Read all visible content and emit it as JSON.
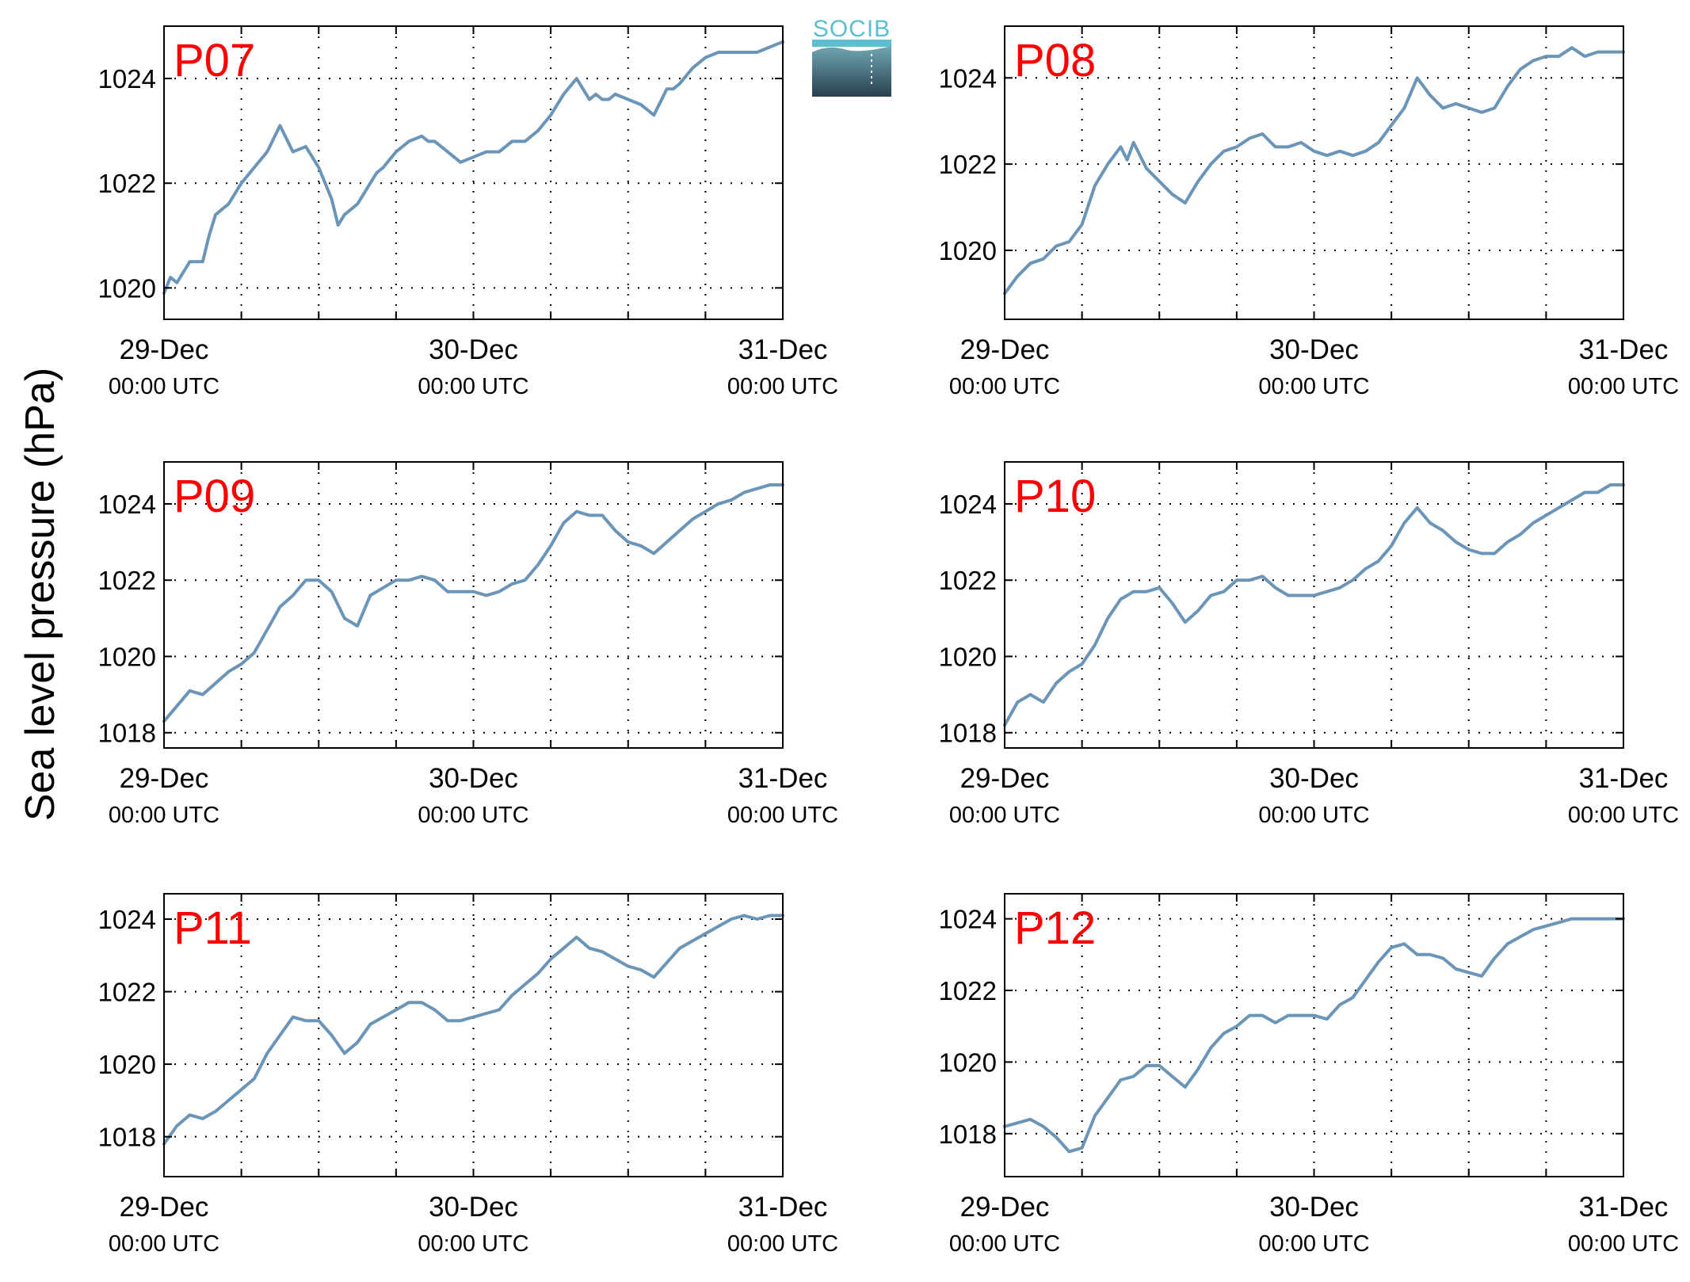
{
  "figure": {
    "ylabel": "Sea level pressure (hPa)",
    "logo_text": "SOCIB",
    "colors": {
      "line": "#6a95b8",
      "panel_label": "#ff0000",
      "axis": "#000000",
      "logo_top": "#5bbfd0",
      "logo_bottom": "#2a3f4d"
    }
  },
  "chart_data": [
    {
      "type": "line",
      "title": "P07",
      "x_ticks": [
        {
          "day": "29-Dec",
          "time": "00:00 UTC"
        },
        {
          "day": "30-Dec",
          "time": "00:00 UTC"
        },
        {
          "day": "31-Dec",
          "time": "00:00 UTC"
        }
      ],
      "x_range_hours": [
        0,
        48
      ],
      "ylim": [
        1019.4,
        1025.0
      ],
      "yticks": [
        1020,
        1022,
        1024
      ],
      "grid": true,
      "series": [
        {
          "color": "#6a95b8",
          "x": [
            0,
            0.5,
            1,
            1.5,
            2,
            3,
            3.5,
            4,
            4.5,
            5,
            6,
            7,
            8,
            9,
            10,
            11,
            12,
            12.5,
            13,
            13.5,
            14,
            15,
            15.5,
            16,
            16.5,
            17,
            18,
            19,
            20,
            20.5,
            21,
            22,
            23,
            24,
            25,
            26,
            27,
            28,
            29,
            30,
            31,
            32,
            33,
            33.5,
            34,
            34.5,
            35,
            36,
            37,
            38,
            39,
            39.5,
            40,
            41,
            42,
            43,
            44,
            45,
            46,
            47,
            48
          ],
          "y": [
            1019.9,
            1020.2,
            1020.1,
            1020.3,
            1020.5,
            1020.5,
            1021.0,
            1021.4,
            1021.5,
            1021.6,
            1022.0,
            1022.3,
            1022.6,
            1023.1,
            1022.6,
            1022.7,
            1022.3,
            1022.0,
            1021.7,
            1021.2,
            1021.4,
            1021.6,
            1021.8,
            1022.0,
            1022.2,
            1022.3,
            1022.6,
            1022.8,
            1022.9,
            1022.8,
            1022.8,
            1022.6,
            1022.4,
            1022.5,
            1022.6,
            1022.6,
            1022.8,
            1022.8,
            1023.0,
            1023.3,
            1023.7,
            1024.0,
            1023.6,
            1023.7,
            1023.6,
            1023.6,
            1023.7,
            1023.6,
            1023.5,
            1023.3,
            1023.8,
            1023.8,
            1023.9,
            1024.2,
            1024.4,
            1024.5,
            1024.5,
            1024.5,
            1024.5,
            1024.6,
            1024.7
          ]
        }
      ]
    },
    {
      "type": "line",
      "title": "P08",
      "x_ticks": [
        {
          "day": "29-Dec",
          "time": "00:00 UTC"
        },
        {
          "day": "30-Dec",
          "time": "00:00 UTC"
        },
        {
          "day": "31-Dec",
          "time": "00:00 UTC"
        }
      ],
      "x_range_hours": [
        0,
        48
      ],
      "ylim": [
        1018.4,
        1025.2
      ],
      "yticks": [
        1020,
        1022,
        1024
      ],
      "grid": true,
      "series": [
        {
          "color": "#6a95b8",
          "x": [
            0,
            1,
            2,
            3,
            4,
            5,
            6,
            7,
            8,
            9,
            9.5,
            10,
            11,
            12,
            13,
            14,
            15,
            16,
            17,
            18,
            19,
            20,
            21,
            22,
            23,
            24,
            25,
            26,
            27,
            28,
            29,
            30,
            31,
            32,
            33,
            34,
            35,
            36,
            37,
            38,
            39,
            40,
            41,
            42,
            43,
            44,
            45,
            46,
            47,
            48
          ],
          "y": [
            1019.0,
            1019.4,
            1019.7,
            1019.8,
            1020.1,
            1020.2,
            1020.6,
            1021.5,
            1022.0,
            1022.4,
            1022.1,
            1022.5,
            1021.9,
            1021.6,
            1021.3,
            1021.1,
            1021.6,
            1022.0,
            1022.3,
            1022.4,
            1022.6,
            1022.7,
            1022.4,
            1022.4,
            1022.5,
            1022.3,
            1022.2,
            1022.3,
            1022.2,
            1022.3,
            1022.5,
            1022.9,
            1023.3,
            1024.0,
            1023.6,
            1023.3,
            1023.4,
            1023.3,
            1023.2,
            1023.3,
            1023.8,
            1024.2,
            1024.4,
            1024.5,
            1024.5,
            1024.7,
            1024.5,
            1024.6,
            1024.6,
            1024.6
          ]
        }
      ]
    },
    {
      "type": "line",
      "title": "P09",
      "x_ticks": [
        {
          "day": "29-Dec",
          "time": "00:00 UTC"
        },
        {
          "day": "30-Dec",
          "time": "00:00 UTC"
        },
        {
          "day": "31-Dec",
          "time": "00:00 UTC"
        }
      ],
      "x_range_hours": [
        0,
        48
      ],
      "ylim": [
        1017.6,
        1025.1
      ],
      "yticks": [
        1018,
        1020,
        1022,
        1024
      ],
      "grid": true,
      "series": [
        {
          "color": "#6a95b8",
          "x": [
            0,
            1,
            2,
            3,
            4,
            5,
            6,
            7,
            8,
            9,
            10,
            11,
            12,
            13,
            14,
            15,
            16,
            17,
            18,
            19,
            20,
            21,
            22,
            23,
            24,
            25,
            26,
            27,
            28,
            29,
            30,
            31,
            32,
            33,
            34,
            35,
            36,
            37,
            38,
            39,
            40,
            41,
            42,
            43,
            44,
            45,
            46,
            47,
            48
          ],
          "y": [
            1018.3,
            1018.7,
            1019.1,
            1019.0,
            1019.3,
            1019.6,
            1019.8,
            1020.1,
            1020.7,
            1021.3,
            1021.6,
            1022.0,
            1022.0,
            1021.7,
            1021.0,
            1020.8,
            1021.6,
            1021.8,
            1022.0,
            1022.0,
            1022.1,
            1022.0,
            1021.7,
            1021.7,
            1021.7,
            1021.6,
            1021.7,
            1021.9,
            1022.0,
            1022.4,
            1022.9,
            1023.5,
            1023.8,
            1023.7,
            1023.7,
            1023.3,
            1023.0,
            1022.9,
            1022.7,
            1023.0,
            1023.3,
            1023.6,
            1023.8,
            1024.0,
            1024.1,
            1024.3,
            1024.4,
            1024.5,
            1024.5
          ]
        }
      ]
    },
    {
      "type": "line",
      "title": "P10",
      "x_ticks": [
        {
          "day": "29-Dec",
          "time": "00:00 UTC"
        },
        {
          "day": "30-Dec",
          "time": "00:00 UTC"
        },
        {
          "day": "31-Dec",
          "time": "00:00 UTC"
        }
      ],
      "x_range_hours": [
        0,
        48
      ],
      "ylim": [
        1017.6,
        1025.1
      ],
      "yticks": [
        1018,
        1020,
        1022,
        1024
      ],
      "grid": true,
      "series": [
        {
          "color": "#6a95b8",
          "x": [
            0,
            1,
            2,
            3,
            4,
            5,
            6,
            7,
            8,
            9,
            10,
            11,
            12,
            13,
            14,
            15,
            16,
            17,
            18,
            19,
            20,
            21,
            22,
            23,
            24,
            25,
            26,
            27,
            28,
            29,
            30,
            31,
            32,
            33,
            34,
            35,
            36,
            37,
            38,
            39,
            40,
            41,
            42,
            43,
            44,
            45,
            46,
            47,
            48
          ],
          "y": [
            1018.2,
            1018.8,
            1019.0,
            1018.8,
            1019.3,
            1019.6,
            1019.8,
            1020.3,
            1021.0,
            1021.5,
            1021.7,
            1021.7,
            1021.8,
            1021.4,
            1020.9,
            1021.2,
            1021.6,
            1021.7,
            1022.0,
            1022.0,
            1022.1,
            1021.8,
            1021.6,
            1021.6,
            1021.6,
            1021.7,
            1021.8,
            1022.0,
            1022.3,
            1022.5,
            1022.9,
            1023.5,
            1023.9,
            1023.5,
            1023.3,
            1023.0,
            1022.8,
            1022.7,
            1022.7,
            1023.0,
            1023.2,
            1023.5,
            1023.7,
            1023.9,
            1024.1,
            1024.3,
            1024.3,
            1024.5,
            1024.5
          ]
        }
      ]
    },
    {
      "type": "line",
      "title": "P11",
      "x_ticks": [
        {
          "day": "29-Dec",
          "time": "00:00 UTC"
        },
        {
          "day": "30-Dec",
          "time": "00:00 UTC"
        },
        {
          "day": "31-Dec",
          "time": "00:00 UTC"
        }
      ],
      "x_range_hours": [
        0,
        48
      ],
      "ylim": [
        1016.9,
        1024.7
      ],
      "yticks": [
        1018,
        1020,
        1022,
        1024
      ],
      "grid": true,
      "series": [
        {
          "color": "#6a95b8",
          "x": [
            0,
            1,
            2,
            3,
            4,
            5,
            6,
            7,
            8,
            9,
            10,
            11,
            12,
            13,
            14,
            15,
            16,
            17,
            18,
            19,
            20,
            21,
            22,
            23,
            24,
            25,
            26,
            27,
            28,
            29,
            30,
            31,
            32,
            33,
            34,
            35,
            36,
            37,
            38,
            39,
            40,
            41,
            42,
            43,
            44,
            45,
            46,
            47,
            48
          ],
          "y": [
            1017.8,
            1018.3,
            1018.6,
            1018.5,
            1018.7,
            1019.0,
            1019.3,
            1019.6,
            1020.3,
            1020.8,
            1021.3,
            1021.2,
            1021.2,
            1020.8,
            1020.3,
            1020.6,
            1021.1,
            1021.3,
            1021.5,
            1021.7,
            1021.7,
            1021.5,
            1021.2,
            1021.2,
            1021.3,
            1021.4,
            1021.5,
            1021.9,
            1022.2,
            1022.5,
            1022.9,
            1023.2,
            1023.5,
            1023.2,
            1023.1,
            1022.9,
            1022.7,
            1022.6,
            1022.4,
            1022.8,
            1023.2,
            1023.4,
            1023.6,
            1023.8,
            1024.0,
            1024.1,
            1024.0,
            1024.1,
            1024.1
          ]
        }
      ]
    },
    {
      "type": "line",
      "title": "P12",
      "x_ticks": [
        {
          "day": "29-Dec",
          "time": "00:00 UTC"
        },
        {
          "day": "30-Dec",
          "time": "00:00 UTC"
        },
        {
          "day": "31-Dec",
          "time": "00:00 UTC"
        }
      ],
      "x_range_hours": [
        0,
        48
      ],
      "ylim": [
        1016.8,
        1024.7
      ],
      "yticks": [
        1018,
        1020,
        1022,
        1024
      ],
      "grid": true,
      "series": [
        {
          "color": "#6a95b8",
          "x": [
            0,
            1,
            2,
            3,
            4,
            5,
            6,
            7,
            8,
            9,
            10,
            11,
            12,
            13,
            14,
            15,
            16,
            17,
            18,
            19,
            20,
            21,
            22,
            23,
            24,
            25,
            26,
            27,
            28,
            29,
            30,
            31,
            32,
            33,
            34,
            35,
            36,
            37,
            38,
            39,
            40,
            41,
            42,
            43,
            44,
            45,
            46,
            47,
            48
          ],
          "y": [
            1018.2,
            1018.3,
            1018.4,
            1018.2,
            1017.9,
            1017.5,
            1017.6,
            1018.5,
            1019.0,
            1019.5,
            1019.6,
            1019.9,
            1019.9,
            1019.6,
            1019.3,
            1019.8,
            1020.4,
            1020.8,
            1021.0,
            1021.3,
            1021.3,
            1021.1,
            1021.3,
            1021.3,
            1021.3,
            1021.2,
            1021.6,
            1021.8,
            1022.3,
            1022.8,
            1023.2,
            1023.3,
            1023.0,
            1023.0,
            1022.9,
            1022.6,
            1022.5,
            1022.4,
            1022.9,
            1023.3,
            1023.5,
            1023.7,
            1023.8,
            1023.9,
            1024.0,
            1024.0,
            1024.0,
            1024.0,
            1024.0
          ]
        }
      ]
    }
  ]
}
